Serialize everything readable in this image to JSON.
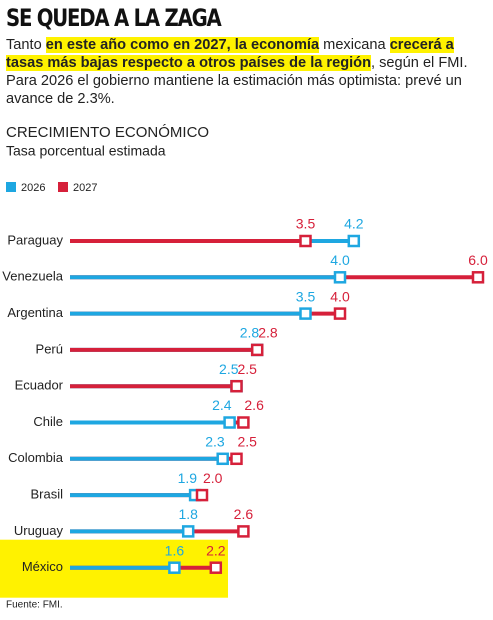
{
  "chart_data": {
    "type": "dumbbell",
    "title": "SE QUEDA A LA ZAGA",
    "subtitle": [
      {
        "text": "Tanto ",
        "highlight": false
      },
      {
        "text": "en este año como en 2027, la economía",
        "highlight": true
      },
      {
        "text": " mexicana ",
        "highlight": false
      },
      {
        "text": "crecerá a tasas más bajas respecto a otros países de la región",
        "highlight": true
      },
      {
        "text": ", según el FMI. Para 2026 el gobierno mantiene la estimación más optimista: prevé un avance de 2.3%.",
        "highlight": false
      }
    ],
    "chart_title": "CRECIMIENTO ECONÓMICO",
    "chart_subtitle": "Tasa porcentual estimada",
    "source": "Fuente: FMI.",
    "categories": [
      "Paraguay",
      "Venezuela",
      "Argentina",
      "Perú",
      "Ecuador",
      "Chile",
      "Colombia",
      "Brasil",
      "Uruguay",
      "México"
    ],
    "highlight_category": "México",
    "xlim": [
      0,
      6
    ],
    "series": [
      {
        "name": "2026",
        "color": "#1ea7e1",
        "values": [
          4.2,
          4.0,
          3.5,
          2.8,
          2.5,
          2.4,
          2.3,
          1.9,
          1.8,
          1.6
        ],
        "value_labels": [
          "4.2",
          "4.0",
          "3.5",
          "2.8",
          "2.5",
          "2.4",
          "2.3",
          "1.9",
          "1.8",
          "1.6"
        ]
      },
      {
        "name": "2027",
        "color": "#d6203a",
        "values": [
          3.5,
          6.0,
          4.0,
          2.8,
          2.5,
          2.6,
          2.5,
          2.0,
          2.6,
          2.2
        ],
        "value_labels": [
          "3.5",
          "6.0",
          "4.0",
          "2.8",
          "2.5",
          "2.6",
          "2.5",
          "2.0",
          "2.6",
          "2.2"
        ]
      }
    ]
  }
}
